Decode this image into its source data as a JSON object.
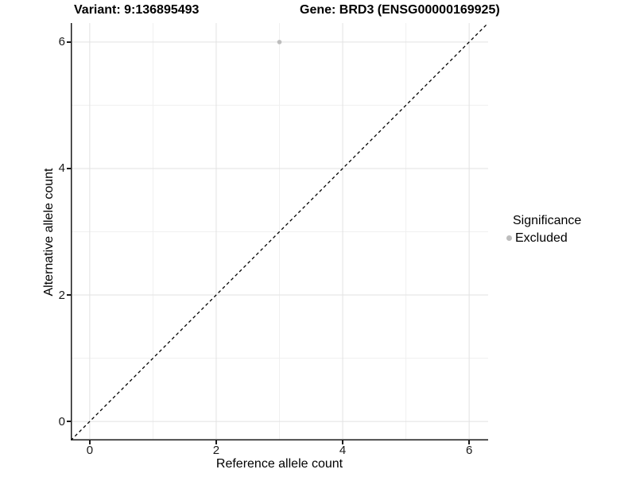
{
  "titles": {
    "variant": "Variant: 9:136895493",
    "gene": "Gene: BRD3 (ENSG00000169925)"
  },
  "legend": {
    "title": "Significance",
    "items": [
      {
        "label": "Excluded",
        "color": "#bdbdbd"
      }
    ]
  },
  "chart_data": {
    "type": "scatter",
    "title": "Variant: 9:136895493   Gene: BRD3 (ENSG00000169925)",
    "xlabel": "Reference allele count",
    "ylabel": "Alternative allele count",
    "xlim": [
      -0.3,
      6.3
    ],
    "ylim": [
      -0.3,
      6.3
    ],
    "x_ticks": [
      0,
      2,
      4,
      6
    ],
    "y_ticks": [
      0,
      2,
      4,
      6
    ],
    "x_minor_ticks": [
      1,
      3,
      5
    ],
    "y_minor_ticks": [
      1,
      3,
      5
    ],
    "grid": true,
    "legend_title": "Significance",
    "legend_position": "right",
    "series": [
      {
        "name": "Excluded",
        "color": "#bdbdbd",
        "points": [
          {
            "x": 3,
            "y": 6
          }
        ]
      }
    ],
    "reference_line": {
      "type": "identity",
      "equation": "y = x",
      "style": "dashed",
      "color": "#000000"
    }
  },
  "colors": {
    "background": "#ffffff",
    "grid_major": "#e2e2e2",
    "grid_minor": "#f0f0f0",
    "axis": "#1a1a1a",
    "point": "#bdbdbd",
    "text": "#000000"
  }
}
